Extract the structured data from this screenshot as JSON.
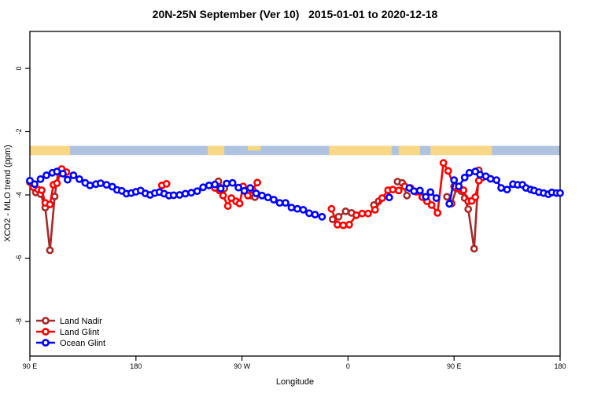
{
  "title": "20N-25N September (Ver 10)   2015-01-01 to 2020-12-18",
  "legend": {
    "items": [
      {
        "label": "Land Nadir",
        "color": "#A52A2A"
      },
      {
        "label": "Land Glint",
        "color": "#FF0000"
      },
      {
        "label": "Ocean Glint",
        "color": "#0000FF"
      }
    ]
  },
  "chart_data": {
    "type": "line",
    "title": "20N-25N September (Ver 10)   2015-01-01 to 2020-12-18",
    "xlabel": "Longitude",
    "ylabel": "XCO2 - MLO trend (ppm)",
    "xlim": [
      90,
      540
    ],
    "ylim": [
      -9.1,
      1.17
    ],
    "x_ticks": [
      {
        "value": 90,
        "label": "90 E"
      },
      {
        "value": 180,
        "label": "180"
      },
      {
        "value": 270,
        "label": "90 W"
      },
      {
        "value": 360,
        "label": "0"
      },
      {
        "value": 450,
        "label": "90 E"
      },
      {
        "value": 540,
        "label": "180"
      }
    ],
    "y_ticks": [
      {
        "value": 0,
        "label": "0"
      },
      {
        "value": -2,
        "label": "-2"
      },
      {
        "value": -4,
        "label": "-4"
      },
      {
        "value": -6,
        "label": "-6"
      },
      {
        "value": -8,
        "label": "-8"
      }
    ],
    "land_ocean_band": {
      "comment": "map strip of the 20N-25N latitude band: ocean vs land along longitude",
      "ocean_color": "#AEC3DF",
      "land_color": "#F8D885",
      "y_range": [
        -2.45,
        -2.74
      ],
      "land_segments": [
        [
          90,
          124
        ],
        [
          241,
          255
        ],
        [
          275,
          286,
          "top"
        ],
        [
          344,
          397
        ],
        [
          403,
          421
        ],
        [
          430,
          482
        ]
      ]
    },
    "series": [
      {
        "name": "Land Nadir",
        "color": "#A52A2A",
        "segments": [
          [
            [
              90,
              -3.6
            ],
            [
              95,
              -3.92
            ],
            [
              99,
              -3.97
            ],
            [
              103,
              -4.4
            ],
            [
              107,
              -5.75
            ],
            [
              111,
              -4.05
            ],
            [
              114,
              -3.28
            ],
            [
              117,
              -3.24
            ]
          ],
          [
            [
              250,
              -3.57
            ],
            [
              255,
              -3.8
            ]
          ],
          [
            [
              278,
              -4.02
            ],
            [
              281,
              -4.07
            ]
          ],
          [
            [
              347,
              -4.77
            ],
            [
              352,
              -4.69
            ],
            [
              358,
              -4.52
            ],
            [
              363,
              -4.57
            ]
          ],
          [
            [
              382,
              -4.32
            ],
            [
              386,
              -4.2
            ]
          ],
          [
            [
              402,
              -3.58
            ],
            [
              406,
              -3.62
            ],
            [
              410,
              -4.02
            ]
          ],
          [
            [
              444,
              -4.06
            ],
            [
              448,
              -4.27
            ],
            [
              452,
              -3.8
            ],
            [
              456,
              -3.88
            ],
            [
              459,
              -4.1
            ],
            [
              462,
              -4.45
            ],
            [
              467,
              -5.7
            ],
            [
              471,
              -3.22
            ],
            [
              474,
              -3.45
            ]
          ]
        ]
      },
      {
        "name": "Land Glint",
        "color": "#FF0000",
        "segments": [
          [
            [
              93,
              -3.76
            ],
            [
              97,
              -3.83
            ],
            [
              100,
              -3.85
            ],
            [
              103,
              -4.25
            ],
            [
              107,
              -4.3
            ],
            [
              110,
              -3.68
            ],
            [
              113,
              -3.63
            ],
            [
              117,
              -3.18
            ],
            [
              121,
              -3.28
            ]
          ],
          [
            [
              202,
              -3.7
            ],
            [
              206,
              -3.65
            ]
          ],
          [
            [
              247,
              -3.78
            ],
            [
              251,
              -3.86
            ],
            [
              254,
              -4.02
            ],
            [
              258,
              -4.35
            ],
            [
              261,
              -4.1
            ],
            [
              265,
              -4.2
            ],
            [
              268,
              -4.27
            ],
            [
              271,
              -3.73
            ],
            [
              275,
              -4.02
            ],
            [
              279,
              -3.84
            ],
            [
              283,
              -3.61
            ]
          ],
          [
            [
              346,
              -4.44
            ],
            [
              351,
              -4.94
            ],
            [
              356,
              -4.96
            ],
            [
              361,
              -4.94
            ],
            [
              367,
              -4.64
            ],
            [
              372,
              -4.59
            ],
            [
              377,
              -4.59
            ],
            [
              383,
              -4.47
            ],
            [
              389,
              -4.1
            ],
            [
              394,
              -3.85
            ],
            [
              398,
              -3.83
            ],
            [
              403,
              -3.86
            ],
            [
              408,
              -3.73
            ],
            [
              413,
              -3.78
            ],
            [
              418,
              -3.9
            ],
            [
              423,
              -4.07
            ],
            [
              427,
              -4.2
            ],
            [
              431,
              -4.32
            ],
            [
              436,
              -4.57
            ],
            [
              441,
              -2.99
            ],
            [
              445,
              -3.24
            ],
            [
              450,
              -3.73
            ],
            [
              454,
              -3.8
            ],
            [
              458,
              -3.85
            ],
            [
              462,
              -4.2
            ],
            [
              465,
              -4.19
            ],
            [
              468,
              -4.07
            ],
            [
              471,
              -3.55
            ]
          ]
        ]
      },
      {
        "name": "Ocean Glint",
        "color": "#0000FF",
        "segments": [
          [
            [
              90,
              -3.55
            ],
            [
              94,
              -3.66
            ],
            [
              99,
              -3.5
            ],
            [
              104,
              -3.38
            ],
            [
              109,
              -3.3
            ],
            [
              113,
              -3.26
            ],
            [
              118,
              -3.33
            ],
            [
              122,
              -3.52
            ],
            [
              127,
              -3.38
            ],
            [
              132,
              -3.5
            ],
            [
              137,
              -3.62
            ],
            [
              141,
              -3.7
            ],
            [
              146,
              -3.66
            ],
            [
              150,
              -3.63
            ],
            [
              155,
              -3.68
            ],
            [
              160,
              -3.74
            ],
            [
              164,
              -3.84
            ],
            [
              168,
              -3.87
            ],
            [
              172,
              -3.96
            ],
            [
              176,
              -3.94
            ],
            [
              180,
              -3.9
            ],
            [
              184,
              -3.86
            ],
            [
              188,
              -3.95
            ],
            [
              192,
              -4.0
            ],
            [
              196,
              -3.94
            ],
            [
              200,
              -3.91
            ],
            [
              204,
              -3.96
            ],
            [
              208,
              -4.02
            ],
            [
              212,
              -4.01
            ],
            [
              217,
              -4.0
            ],
            [
              222,
              -3.96
            ],
            [
              227,
              -3.93
            ],
            [
              232,
              -3.88
            ],
            [
              237,
              -3.76
            ],
            [
              242,
              -3.7
            ],
            [
              247,
              -3.67
            ],
            [
              252,
              -3.8
            ],
            [
              257,
              -3.64
            ],
            [
              262,
              -3.62
            ],
            [
              267,
              -3.77
            ],
            [
              272,
              -3.87
            ],
            [
              277,
              -3.78
            ],
            [
              282,
              -3.95
            ],
            [
              287,
              -4.02
            ],
            [
              292,
              -4.08
            ],
            [
              297,
              -4.15
            ],
            [
              302,
              -4.25
            ],
            [
              307,
              -4.25
            ],
            [
              312,
              -4.4
            ],
            [
              317,
              -4.44
            ],
            [
              322,
              -4.47
            ],
            [
              327,
              -4.58
            ],
            [
              332,
              -4.62
            ],
            [
              338,
              -4.69
            ]
          ],
          [
            [
              395,
              -4.08
            ]
          ],
          [
            [
              412,
              -3.78
            ],
            [
              416,
              -3.88
            ],
            [
              421,
              -3.86
            ],
            [
              426,
              -4.06
            ],
            [
              430,
              -3.91
            ],
            [
              435,
              -4.1
            ]
          ],
          [
            [
              446,
              -4.28
            ],
            [
              450,
              -3.53
            ],
            [
              454,
              -3.73
            ],
            [
              459,
              -3.45
            ],
            [
              463,
              -3.3
            ],
            [
              468,
              -3.26
            ],
            [
              472,
              -3.36
            ],
            [
              477,
              -3.41
            ],
            [
              481,
              -3.49
            ],
            [
              486,
              -3.53
            ],
            [
              490,
              -3.78
            ],
            [
              495,
              -3.83
            ],
            [
              500,
              -3.66
            ],
            [
              504,
              -3.68
            ],
            [
              508,
              -3.68
            ],
            [
              511,
              -3.78
            ],
            [
              515,
              -3.83
            ],
            [
              518,
              -3.86
            ],
            [
              522,
              -3.91
            ],
            [
              526,
              -3.94
            ],
            [
              530,
              -3.98
            ],
            [
              533,
              -3.92
            ],
            [
              537,
              -3.94
            ],
            [
              540,
              -3.94
            ]
          ]
        ]
      }
    ],
    "legend_position": "bottom-left",
    "grid": false
  }
}
